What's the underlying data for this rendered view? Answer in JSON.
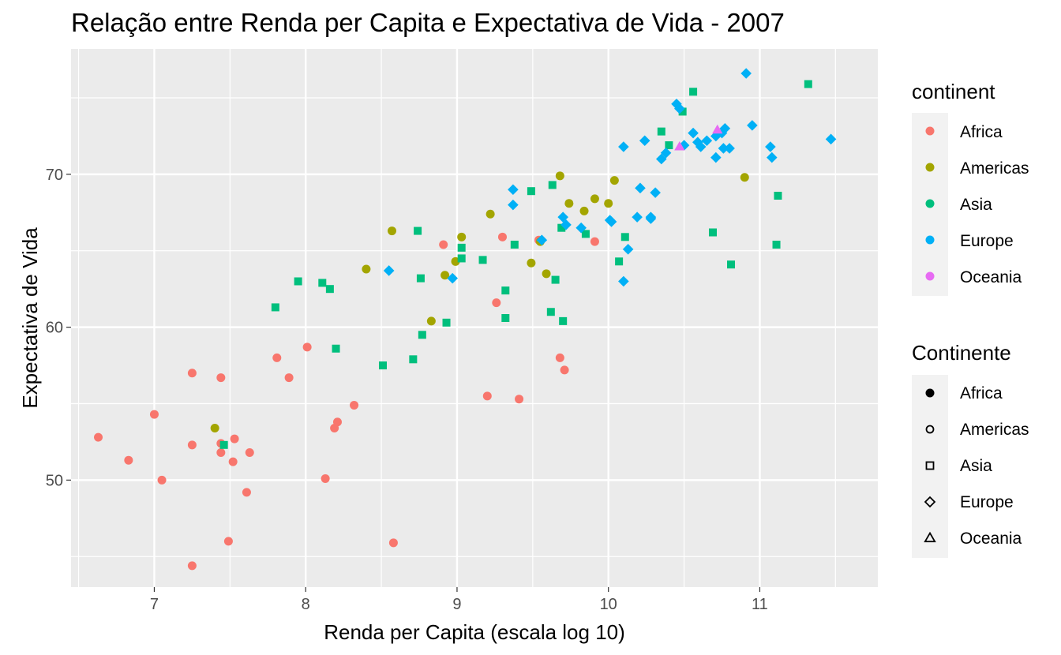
{
  "chart_data": {
    "type": "scatter",
    "title": "Relação entre Renda per Capita e Expectativa de Vida - 2007",
    "xlabel": "Renda per Capita (escala log 10)",
    "ylabel": "Expectativa de Vida",
    "xlim": [
      6.45,
      11.78
    ],
    "ylim": [
      43.0,
      78.2
    ],
    "xticks": [
      7,
      8,
      9,
      10,
      11
    ],
    "yticks": [
      50,
      60,
      70
    ],
    "grid": true,
    "legend_position": "right",
    "color_legend": {
      "title": "continent",
      "entries": [
        "Africa",
        "Americas",
        "Asia",
        "Europe",
        "Oceania"
      ]
    },
    "shape_legend": {
      "title": "Continente",
      "entries": [
        "Africa",
        "Americas",
        "Asia",
        "Europe",
        "Oceania"
      ]
    },
    "colors": {
      "Africa": "#F8766D",
      "Americas": "#A3A500",
      "Asia": "#00BF7D",
      "Europe": "#00B0F6",
      "Oceania": "#E76BF3"
    },
    "shapes": {
      "Africa": "circle",
      "Americas": "circle",
      "Asia": "square",
      "Europe": "diamond",
      "Oceania": "triangle"
    },
    "series": [
      {
        "name": "Africa",
        "points": [
          [
            6.63,
            52.8
          ],
          [
            6.83,
            51.3
          ],
          [
            7.0,
            54.3
          ],
          [
            7.05,
            50.0
          ],
          [
            7.25,
            57.0
          ],
          [
            7.25,
            52.3
          ],
          [
            7.25,
            44.4
          ],
          [
            7.44,
            56.7
          ],
          [
            7.44,
            52.4
          ],
          [
            7.44,
            51.8
          ],
          [
            7.49,
            46.0
          ],
          [
            7.53,
            52.7
          ],
          [
            7.52,
            51.2
          ],
          [
            7.61,
            49.2
          ],
          [
            7.63,
            51.8
          ],
          [
            7.81,
            58.0
          ],
          [
            7.89,
            56.7
          ],
          [
            8.01,
            58.7
          ],
          [
            8.13,
            50.1
          ],
          [
            8.19,
            53.4
          ],
          [
            8.21,
            53.8
          ],
          [
            8.32,
            54.9
          ],
          [
            8.58,
            45.9
          ],
          [
            8.91,
            65.4
          ],
          [
            9.2,
            55.5
          ],
          [
            9.26,
            61.6
          ],
          [
            9.3,
            65.9
          ],
          [
            9.41,
            55.3
          ],
          [
            9.54,
            65.7
          ],
          [
            9.68,
            58.0
          ],
          [
            9.71,
            57.2
          ],
          [
            9.91,
            65.6
          ]
        ]
      },
      {
        "name": "Americas",
        "points": [
          [
            7.4,
            53.4
          ],
          [
            8.4,
            63.8
          ],
          [
            8.57,
            66.3
          ],
          [
            8.83,
            60.4
          ],
          [
            8.92,
            63.4
          ],
          [
            8.99,
            64.3
          ],
          [
            9.03,
            65.9
          ],
          [
            9.22,
            67.4
          ],
          [
            9.49,
            64.2
          ],
          [
            9.55,
            65.6
          ],
          [
            9.59,
            63.5
          ],
          [
            9.68,
            69.9
          ],
          [
            9.74,
            68.1
          ],
          [
            9.84,
            67.6
          ],
          [
            9.91,
            68.4
          ],
          [
            10.0,
            68.1
          ],
          [
            10.04,
            69.6
          ],
          [
            10.9,
            69.8
          ]
        ]
      },
      {
        "name": "Asia",
        "points": [
          [
            7.46,
            52.3
          ],
          [
            7.8,
            61.3
          ],
          [
            7.95,
            63.0
          ],
          [
            8.11,
            62.9
          ],
          [
            8.16,
            62.5
          ],
          [
            8.2,
            58.6
          ],
          [
            8.51,
            57.5
          ],
          [
            8.71,
            57.9
          ],
          [
            8.74,
            66.3
          ],
          [
            8.76,
            63.2
          ],
          [
            8.77,
            59.5
          ],
          [
            8.93,
            60.3
          ],
          [
            9.03,
            65.2
          ],
          [
            9.03,
            64.5
          ],
          [
            9.17,
            64.4
          ],
          [
            9.32,
            62.4
          ],
          [
            9.32,
            60.6
          ],
          [
            9.38,
            65.4
          ],
          [
            9.49,
            68.9
          ],
          [
            9.62,
            61.0
          ],
          [
            9.63,
            69.3
          ],
          [
            9.65,
            63.1
          ],
          [
            9.69,
            66.5
          ],
          [
            9.7,
            60.4
          ],
          [
            9.85,
            66.1
          ],
          [
            10.07,
            64.3
          ],
          [
            10.11,
            65.9
          ],
          [
            10.35,
            72.8
          ],
          [
            10.4,
            71.9
          ],
          [
            10.49,
            74.1
          ],
          [
            10.56,
            75.4
          ],
          [
            10.69,
            66.2
          ],
          [
            10.81,
            64.1
          ],
          [
            11.11,
            65.4
          ],
          [
            11.12,
            68.6
          ],
          [
            11.32,
            75.9
          ]
        ]
      },
      {
        "name": "Europe",
        "points": [
          [
            8.55,
            63.7
          ],
          [
            8.97,
            63.2
          ],
          [
            9.37,
            69.0
          ],
          [
            9.37,
            68.0
          ],
          [
            9.56,
            65.7
          ],
          [
            9.7,
            67.2
          ],
          [
            9.72,
            66.7
          ],
          [
            9.82,
            66.5
          ],
          [
            10.01,
            67.0
          ],
          [
            10.02,
            66.9
          ],
          [
            10.1,
            71.8
          ],
          [
            10.1,
            63.0
          ],
          [
            10.13,
            65.1
          ],
          [
            10.19,
            67.2
          ],
          [
            10.21,
            69.1
          ],
          [
            10.24,
            72.2
          ],
          [
            10.28,
            67.2
          ],
          [
            10.28,
            67.1
          ],
          [
            10.31,
            68.8
          ],
          [
            10.35,
            71.0
          ],
          [
            10.38,
            71.4
          ],
          [
            10.45,
            74.6
          ],
          [
            10.47,
            74.3
          ],
          [
            10.5,
            71.9
          ],
          [
            10.56,
            72.7
          ],
          [
            10.59,
            72.1
          ],
          [
            10.61,
            71.8
          ],
          [
            10.65,
            72.2
          ],
          [
            10.71,
            71.1
          ],
          [
            10.71,
            72.5
          ],
          [
            10.75,
            72.7
          ],
          [
            10.76,
            71.7
          ],
          [
            10.77,
            73.0
          ],
          [
            10.8,
            71.7
          ],
          [
            10.91,
            76.6
          ],
          [
            10.95,
            73.2
          ],
          [
            11.07,
            71.8
          ],
          [
            11.08,
            71.1
          ],
          [
            11.47,
            72.3
          ]
        ]
      },
      {
        "name": "Oceania",
        "points": [
          [
            10.47,
            71.8
          ],
          [
            10.72,
            72.9
          ]
        ]
      }
    ]
  }
}
